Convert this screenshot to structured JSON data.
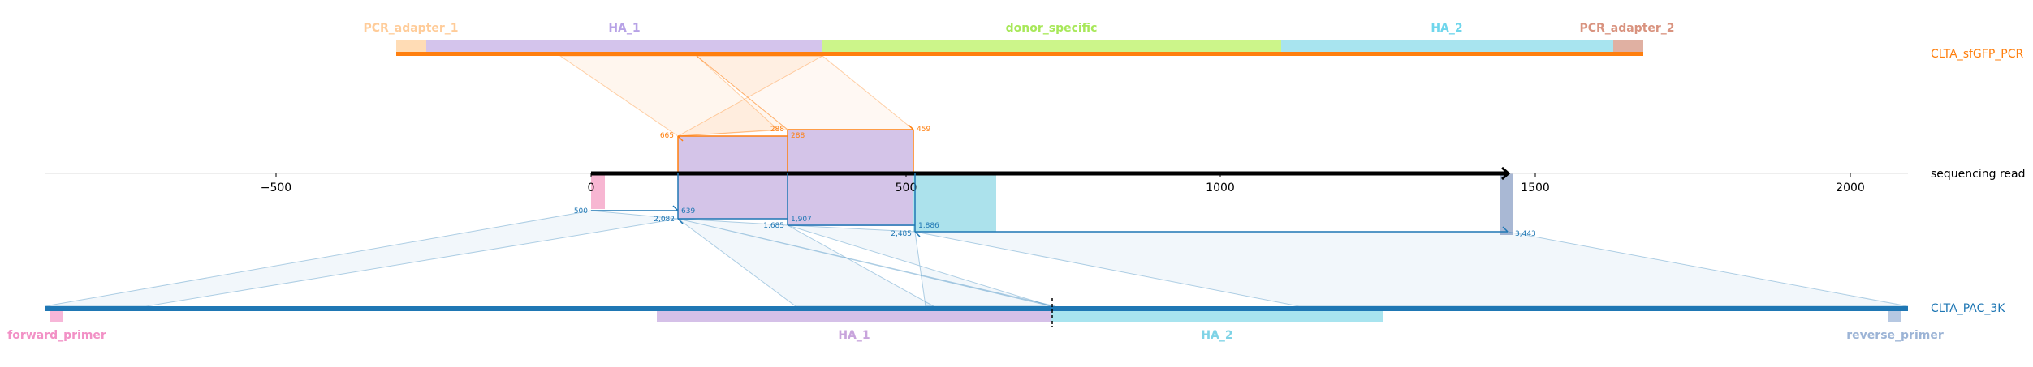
{
  "colors": {
    "pcr": "#ff7f0e",
    "pac": "#1f77b4",
    "read": "#000000",
    "ha1": "#c5b0d5",
    "ha2": "#9edae5",
    "donor": "#bcf582",
    "pcr_adapter_1": "#ffd9b0",
    "pcr_adapter_2": "#d8a898",
    "forward_primer": "#f7b6d2",
    "reverse_primer": "#b0c4de",
    "pink_block": "#f7b6d2",
    "grey_block": "#a9b8d4"
  },
  "sequences": {
    "top": {
      "name": "CLTA_sfGFP_PCR"
    },
    "read": {
      "name": "sequencing read"
    },
    "bottom": {
      "name": "CLTA_PAC_3K"
    }
  },
  "axis": {
    "ticks": [
      "−500",
      "0",
      "500",
      "1000",
      "1500",
      "2000"
    ]
  },
  "top_features": [
    {
      "label": "PCR_adapter_1",
      "color": "#ffcc99",
      "fill": "#ffdcb5"
    },
    {
      "label": "HA_1",
      "color": "#b7a2e6",
      "fill": "#d4c4ec"
    },
    {
      "label": "donor_specific",
      "color": "#a8e85a",
      "fill": "#ccf58a"
    },
    {
      "label": "HA_2",
      "color": "#6fd6ec",
      "fill": "#a8e4ef"
    },
    {
      "label": "PCR_adapter_2",
      "color": "#d9937f",
      "fill": "#e0b0a2"
    }
  ],
  "bottom_features": [
    {
      "label": "forward_primer",
      "color": "#f291c6",
      "fill": "#f7b6d8"
    },
    {
      "label": "HA_1",
      "color": "#c8a4dc",
      "fill": "#d5c0e8"
    },
    {
      "label": "HA_2",
      "color": "#7fd3e6",
      "fill": "#a8e4ef"
    },
    {
      "label": "reverse_primer",
      "color": "#9cb4d6",
      "fill": "#b6c8e2"
    }
  ],
  "top_alignments": [
    {
      "left_label": "665",
      "right_label": "288",
      "color": "#ff7f0e"
    },
    {
      "left_label": "288",
      "right_label": "459",
      "color": "#ff7f0e"
    },
    {
      "left_label": "665",
      "right_label": "",
      "color": "#ff7f0e"
    }
  ],
  "bottom_alignments": [
    {
      "left_label": "500",
      "right_label": "639"
    },
    {
      "left_label": "2,082",
      "right_label": ""
    },
    {
      "left_label": "1,685",
      "right_label": "1,907"
    },
    {
      "left_label": "2,485",
      "right_label": "1,886"
    },
    {
      "left_label": "",
      "right_label": "3,443"
    }
  ]
}
